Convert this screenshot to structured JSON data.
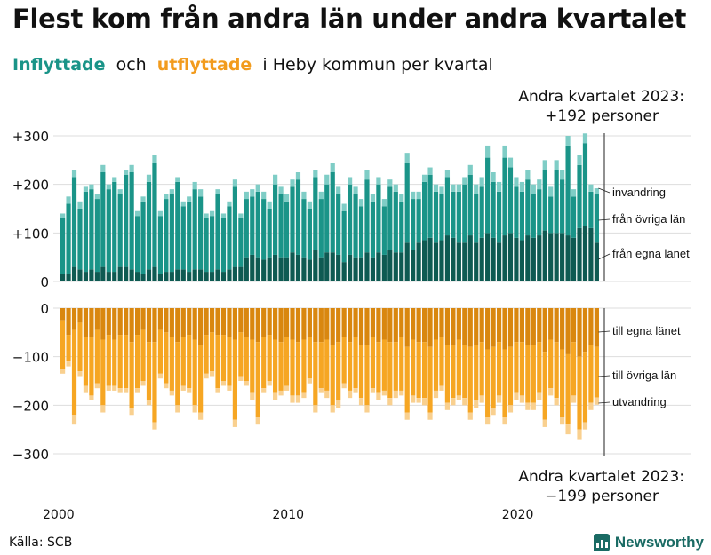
{
  "title": "Flest kom från andra län under andra kvartalet",
  "subtitle": {
    "inflyttade": "Inflyttade",
    "och": "och",
    "utflyttade": "utflyttade",
    "rest": "i Heby kommun per kvartal"
  },
  "source": "Källa: SCB",
  "brand": "Newsworthy",
  "colors": {
    "in_egna": "#0e5a52",
    "in_ovriga": "#1a9488",
    "in_invandring": "#7fcdc6",
    "out_egna": "#d9870f",
    "out_ovriga": "#f6a623",
    "out_utvandring": "#f9d08f",
    "grid": "#dddddd",
    "text": "#111111"
  },
  "chart_data": {
    "type": "bar",
    "stacked": true,
    "start_year": 2000,
    "quarters_count": 94,
    "x_tick_labels": [
      {
        "label": "2000",
        "year": 2000
      },
      {
        "label": "2010",
        "year": 2010
      },
      {
        "label": "2020",
        "year": 2020
      }
    ],
    "y_top_ticks": [
      {
        "value": 300,
        "label": "+300"
      },
      {
        "value": 200,
        "label": "+200"
      },
      {
        "value": 100,
        "label": "+100"
      },
      {
        "value": 0,
        "label": "0"
      }
    ],
    "y_bottom_ticks": [
      {
        "value": 0,
        "label": "0"
      },
      {
        "value": -100,
        "label": "−100"
      },
      {
        "value": -200,
        "label": "−200"
      },
      {
        "value": -300,
        "label": "−300"
      }
    ],
    "ylim_top": [
      0,
      300
    ],
    "ylim_bottom": [
      -300,
      0
    ],
    "series_labels": {
      "invandring": "invandring",
      "fran_ovriga_lan": "från övriga län",
      "fran_egna_lanet": "från egna länet",
      "till_egna_lanet": "till egna länet",
      "till_ovriga_lan": "till övriga län",
      "utvandring": "utvandring"
    },
    "annotation_top": {
      "line1": "Andra kvartalet 2023:",
      "line2": "+192 personer"
    },
    "annotation_bottom": {
      "line1": "Andra kvartalet 2023:",
      "line2": "−199 personer"
    },
    "inflyttade_total": [
      140,
      175,
      230,
      165,
      195,
      200,
      180,
      240,
      200,
      215,
      190,
      230,
      240,
      145,
      175,
      220,
      260,
      145,
      180,
      190,
      215,
      165,
      175,
      205,
      190,
      140,
      145,
      190,
      140,
      165,
      210,
      140,
      185,
      190,
      200,
      185,
      165,
      220,
      195,
      180,
      210,
      225,
      185,
      165,
      230,
      185,
      220,
      245,
      195,
      160,
      215,
      195,
      170,
      230,
      180,
      215,
      170,
      210,
      200,
      180,
      265,
      185,
      185,
      220,
      235,
      200,
      195,
      230,
      200,
      200,
      215,
      240,
      200,
      215,
      280,
      225,
      205,
      280,
      255,
      215,
      205,
      230,
      200,
      210,
      250,
      195,
      250,
      230,
      300,
      190,
      260,
      305,
      200,
      192
    ],
    "inflyttade_fran_egna_lanet": [
      15,
      15,
      30,
      25,
      20,
      25,
      20,
      30,
      20,
      20,
      30,
      30,
      25,
      20,
      15,
      25,
      30,
      15,
      20,
      20,
      25,
      25,
      20,
      25,
      25,
      20,
      20,
      25,
      20,
      25,
      30,
      30,
      50,
      55,
      50,
      45,
      50,
      55,
      50,
      50,
      60,
      55,
      50,
      45,
      65,
      50,
      60,
      60,
      55,
      40,
      55,
      50,
      50,
      60,
      50,
      60,
      55,
      65,
      60,
      60,
      80,
      65,
      80,
      85,
      90,
      80,
      85,
      95,
      90,
      80,
      80,
      95,
      80,
      90,
      100,
      90,
      80,
      95,
      100,
      90,
      85,
      95,
      90,
      95,
      105,
      100,
      100,
      100,
      95,
      90,
      110,
      115,
      110,
      80
    ],
    "inflyttade_invandring": [
      10,
      15,
      15,
      15,
      10,
      10,
      10,
      15,
      10,
      10,
      10,
      10,
      15,
      10,
      10,
      15,
      15,
      10,
      10,
      10,
      10,
      10,
      10,
      15,
      15,
      10,
      10,
      10,
      10,
      10,
      15,
      10,
      15,
      15,
      15,
      15,
      15,
      20,
      15,
      15,
      15,
      15,
      15,
      15,
      15,
      15,
      20,
      20,
      15,
      15,
      15,
      15,
      15,
      20,
      15,
      15,
      15,
      15,
      15,
      15,
      20,
      15,
      15,
      15,
      15,
      15,
      15,
      15,
      15,
      15,
      15,
      20,
      20,
      20,
      25,
      20,
      20,
      25,
      20,
      20,
      20,
      20,
      20,
      20,
      20,
      20,
      20,
      20,
      20,
      15,
      20,
      20,
      15,
      12
    ],
    "utflyttade_total": [
      -135,
      -120,
      -240,
      -140,
      -175,
      -190,
      -165,
      -215,
      -170,
      -170,
      -175,
      -175,
      -220,
      -175,
      -160,
      -200,
      -250,
      -145,
      -165,
      -180,
      -215,
      -170,
      -175,
      -215,
      -230,
      -145,
      -140,
      -175,
      -160,
      -170,
      -245,
      -150,
      -160,
      -190,
      -240,
      -175,
      -160,
      -190,
      -180,
      -170,
      -195,
      -195,
      -185,
      -155,
      -215,
      -175,
      -185,
      -215,
      -205,
      -165,
      -185,
      -175,
      -200,
      -215,
      -175,
      -190,
      -180,
      -200,
      -185,
      -180,
      -230,
      -195,
      -195,
      -200,
      -230,
      -185,
      -170,
      -210,
      -200,
      -190,
      -200,
      -230,
      -205,
      -195,
      -240,
      -220,
      -195,
      -240,
      -215,
      -190,
      -195,
      -210,
      -210,
      -190,
      -245,
      -180,
      -200,
      -240,
      -260,
      -195,
      -270,
      -250,
      -210,
      -199
    ],
    "utflyttade_till_egna_lanet": [
      -25,
      -55,
      -45,
      -30,
      -60,
      -60,
      -45,
      -65,
      -55,
      -65,
      -55,
      -55,
      -70,
      -55,
      -45,
      -70,
      -70,
      -45,
      -50,
      -60,
      -70,
      -60,
      -55,
      -65,
      -75,
      -55,
      -50,
      -55,
      -55,
      -60,
      -65,
      -50,
      -60,
      -65,
      -70,
      -60,
      -55,
      -65,
      -70,
      -60,
      -65,
      -70,
      -65,
      -60,
      -70,
      -70,
      -65,
      -75,
      -70,
      -60,
      -70,
      -60,
      -75,
      -75,
      -60,
      -70,
      -65,
      -70,
      -70,
      -60,
      -80,
      -65,
      -70,
      -70,
      -80,
      -65,
      -60,
      -75,
      -75,
      -65,
      -75,
      -80,
      -75,
      -70,
      -85,
      -80,
      -70,
      -85,
      -80,
      -70,
      -70,
      -75,
      -75,
      -70,
      -90,
      -65,
      -70,
      -85,
      -95,
      -70,
      -100,
      -90,
      -75,
      -80
    ],
    "utflyttade_utvandring": [
      -10,
      -10,
      -20,
      -10,
      -15,
      -10,
      -10,
      -15,
      -10,
      -10,
      -10,
      -10,
      -15,
      -10,
      -10,
      -10,
      -15,
      -10,
      -10,
      -10,
      -15,
      -10,
      -10,
      -15,
      -15,
      -10,
      -10,
      -10,
      -10,
      -10,
      -15,
      -10,
      -10,
      -15,
      -15,
      -10,
      -10,
      -15,
      -10,
      -10,
      -15,
      -15,
      -10,
      -10,
      -15,
      -10,
      -15,
      -15,
      -15,
      -10,
      -15,
      -10,
      -15,
      -15,
      -10,
      -15,
      -10,
      -15,
      -15,
      -10,
      -15,
      -15,
      -10,
      -15,
      -15,
      -15,
      -10,
      -15,
      -15,
      -10,
      -15,
      -15,
      -15,
      -15,
      -15,
      -15,
      -15,
      -15,
      -15,
      -15,
      -15,
      -15,
      -15,
      -15,
      -15,
      -15,
      -15,
      -15,
      -20,
      -15,
      -20,
      -15,
      -15,
      -15
    ]
  }
}
